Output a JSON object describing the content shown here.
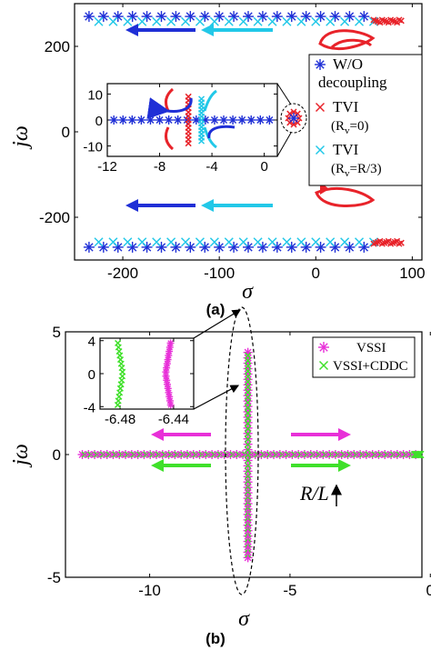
{
  "chart_data": [
    {
      "type": "scatter",
      "caption": "(a)",
      "xlabel": "σ",
      "ylabel": "jω",
      "xlim": [
        -250,
        110
      ],
      "ylim": [
        -300,
        300
      ],
      "xticks": [
        "-200",
        "-100",
        "0",
        "100"
      ],
      "yticks": [
        "200",
        "0",
        "-200"
      ],
      "legend": {
        "placement": "right",
        "entries": [
          {
            "line1": "W/O",
            "line2": "decoupling",
            "color": "#1f2fd6"
          },
          {
            "line1": "TVI",
            "line2": "(R",
            "sub": "v",
            "tail": "=0)",
            "color": "#e8232a"
          },
          {
            "line1": "TVI",
            "line2": "(R",
            "sub": "v",
            "tail": "=R/3)",
            "color": "#22c8e8"
          }
        ]
      },
      "series": [
        {
          "marker": "asterisk",
          "color": "#1f2fd6",
          "x": [
            -235,
            -220,
            -205,
            -190,
            -175,
            -160,
            -145,
            -130,
            -115,
            -100,
            -85,
            -70,
            -55,
            -40,
            -25,
            -10,
            5,
            20,
            35,
            50
          ],
          "y": [
            270,
            270,
            270,
            270,
            270,
            270,
            270,
            270,
            270,
            270,
            270,
            270,
            270,
            270,
            270,
            270,
            270,
            270,
            270,
            270
          ]
        },
        {
          "marker": "x",
          "color": "#22c8e8",
          "x": [
            -225,
            -210,
            -195,
            -180,
            -165,
            -150,
            -135,
            -120,
            -105,
            -90,
            -75,
            -60,
            -45,
            -30,
            -15,
            0,
            15,
            30,
            45,
            60
          ],
          "y": [
            258,
            258,
            258,
            258,
            258,
            258,
            258,
            258,
            258,
            258,
            258,
            258,
            258,
            258,
            258,
            258,
            258,
            258,
            258,
            258
          ]
        },
        {
          "marker": "asterisk",
          "color": "#1f2fd6",
          "x": [
            -235,
            -220,
            -205,
            -190,
            -175,
            -160,
            -145,
            -130,
            -115,
            -100,
            -85,
            -70,
            -55,
            -40,
            -25,
            -10,
            5,
            20,
            35,
            50
          ],
          "y": [
            -270,
            -270,
            -270,
            -270,
            -270,
            -270,
            -270,
            -270,
            -270,
            -270,
            -270,
            -270,
            -270,
            -270,
            -270,
            -270,
            -270,
            -270,
            -270,
            -270
          ]
        },
        {
          "marker": "x",
          "color": "#22c8e8",
          "x": [
            -225,
            -210,
            -195,
            -180,
            -165,
            -150,
            -135,
            -120,
            -105,
            -90,
            -75,
            -60,
            -45,
            -30,
            -15,
            0,
            15,
            30,
            45,
            60
          ],
          "y": [
            -258,
            -258,
            -258,
            -258,
            -258,
            -258,
            -258,
            -258,
            -258,
            -258,
            -258,
            -258,
            -258,
            -258,
            -258,
            -258,
            -258,
            -258,
            -258,
            -258
          ]
        }
      ],
      "inset": {
        "xlim": [
          -12,
          1
        ],
        "ylim": [
          -14,
          14
        ],
        "xticks": [
          "-12",
          "-8",
          "-4",
          "0"
        ],
        "yticks": [
          "10",
          "0",
          "-10"
        ]
      }
    },
    {
      "type": "scatter",
      "caption": "(b)",
      "xlabel": "σ",
      "ylabel": "jω",
      "xlim": [
        -13,
        -0.3
      ],
      "ylim": [
        -5,
        5
      ],
      "xticks": [
        "-10",
        "-5",
        "0"
      ],
      "yticks": [
        "5",
        "0",
        "-5"
      ],
      "legend": {
        "placement": "top-right",
        "entries": [
          {
            "label": "VSSI",
            "color": "#e830d8"
          },
          {
            "label": "VSSI+CDDC",
            "color": "#3fe02a"
          }
        ]
      },
      "annotation": "R/L",
      "inset": {
        "xlim": [
          -6.495,
          -6.425
        ],
        "ylim": [
          -4.3,
          4.3
        ],
        "xticks": [
          "-6.48",
          "-6.44"
        ],
        "yticks": [
          "4",
          "0",
          "-4"
        ]
      }
    }
  ]
}
